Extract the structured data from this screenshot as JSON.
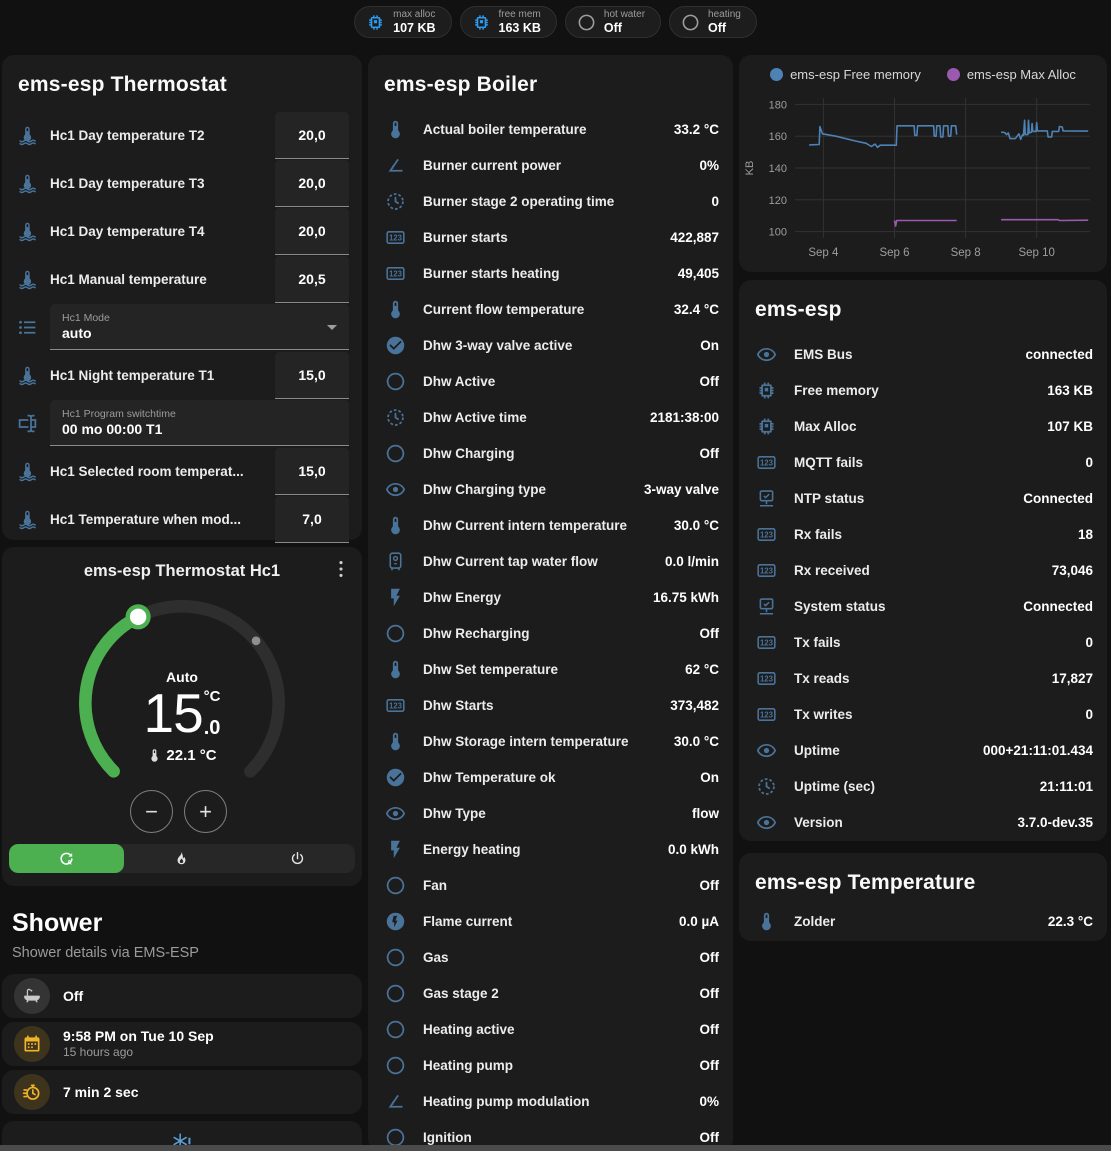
{
  "badges": [
    {
      "name": "max-alloc",
      "label": "max alloc",
      "value": "107 KB",
      "icon": "chip",
      "icon_color": "#2b9af0"
    },
    {
      "name": "free-mem",
      "label": "free mem",
      "value": "163 KB",
      "icon": "chip",
      "icon_color": "#2b9af0"
    },
    {
      "name": "hot-water",
      "label": "hot water",
      "value": "Off",
      "icon": "circle-outline",
      "icon_color": "#9e9e9e"
    },
    {
      "name": "heating",
      "label": "heating",
      "value": "Off",
      "icon": "circle-outline",
      "icon_color": "#9e9e9e"
    }
  ],
  "thermostat_card": {
    "title": "ems-esp Thermostat",
    "rows": [
      {
        "icon": "thermometer-water",
        "label": "Hc1 Day temperature T2",
        "control": "number",
        "value": "20,0"
      },
      {
        "icon": "thermometer-water",
        "label": "Hc1 Day temperature T3",
        "control": "number",
        "value": "20,0"
      },
      {
        "icon": "thermometer-water",
        "label": "Hc1 Day temperature T4",
        "control": "number",
        "value": "20,0"
      },
      {
        "icon": "thermometer-water",
        "label": "Hc1 Manual temperature",
        "control": "number",
        "value": "20,5"
      },
      {
        "icon": "format-list",
        "label": "Hc1 Mode",
        "control": "select",
        "value": "auto"
      },
      {
        "icon": "thermometer-water",
        "label": "Hc1 Night temperature T1",
        "control": "number",
        "value": "15,0"
      },
      {
        "icon": "form-textbox",
        "label": "Hc1 Program switchtime",
        "control": "text",
        "value": "00 mo 00:00 T1"
      },
      {
        "icon": "thermometer-water",
        "label": "Hc1 Selected room temperat...",
        "control": "number",
        "value": "15,0"
      },
      {
        "icon": "thermometer-water",
        "label": "Hc1 Temperature when mod...",
        "control": "number",
        "value": "7,0"
      }
    ]
  },
  "dial_card": {
    "title": "ems-esp Thermostat Hc1",
    "mode_label": "Auto",
    "target_int": "15",
    "target_dec": ".0",
    "unit": "°C",
    "current": "22.1 °C",
    "minus": "−",
    "plus": "+",
    "accent": "#4caf50"
  },
  "shower": {
    "title": "Shower",
    "subtitle": "Shower details via EMS-ESP",
    "items": [
      {
        "icon": "bathtub",
        "style": "gray",
        "primary": "Off",
        "secondary": ""
      },
      {
        "icon": "calendar",
        "style": "amber",
        "primary": "9:58 PM on Tue 10 Sep",
        "secondary": "15 hours ago"
      },
      {
        "icon": "timer",
        "style": "amber",
        "primary": "7 min 2 sec",
        "secondary": ""
      },
      {
        "icon": "snowflake-alert",
        "style": "plain-blue",
        "primary": "",
        "secondary": "",
        "centered": true
      }
    ]
  },
  "boiler_card": {
    "title": "ems-esp Boiler",
    "rows": [
      {
        "icon": "thermometer",
        "label": "Actual boiler temperature",
        "value": "33.2 °C"
      },
      {
        "icon": "angle-acute",
        "label": "Burner current power",
        "value": "0%"
      },
      {
        "icon": "progress-clock",
        "label": "Burner stage 2 operating time",
        "value": "0"
      },
      {
        "icon": "counter",
        "label": "Burner starts",
        "value": "422,887"
      },
      {
        "icon": "counter",
        "label": "Burner starts heating",
        "value": "49,405"
      },
      {
        "icon": "thermometer",
        "label": "Current flow temperature",
        "value": "32.4 °C"
      },
      {
        "icon": "check-circle",
        "label": "Dhw 3-way valve active",
        "value": "On"
      },
      {
        "icon": "circle-outline",
        "label": "Dhw Active",
        "value": "Off"
      },
      {
        "icon": "progress-clock",
        "label": "Dhw Active time",
        "value": "2181:38:00"
      },
      {
        "icon": "circle-outline",
        "label": "Dhw Charging",
        "value": "Off"
      },
      {
        "icon": "eye",
        "label": "Dhw Charging type",
        "value": "3-way valve"
      },
      {
        "icon": "thermometer",
        "label": "Dhw Current intern temperature",
        "value": "30.0 °C"
      },
      {
        "icon": "water-boiler",
        "label": "Dhw Current tap water flow",
        "value": "0.0 l/min"
      },
      {
        "icon": "flash",
        "label": "Dhw Energy",
        "value": "16.75 kWh"
      },
      {
        "icon": "circle-outline",
        "label": "Dhw Recharging",
        "value": "Off"
      },
      {
        "icon": "thermometer",
        "label": "Dhw Set temperature",
        "value": "62 °C"
      },
      {
        "icon": "counter",
        "label": "Dhw Starts",
        "value": "373,482"
      },
      {
        "icon": "thermometer",
        "label": "Dhw Storage intern temperature",
        "value": "30.0 °C"
      },
      {
        "icon": "check-circle",
        "label": "Dhw Temperature ok",
        "value": "On"
      },
      {
        "icon": "eye",
        "label": "Dhw Type",
        "value": "flow"
      },
      {
        "icon": "flash",
        "label": "Energy heating",
        "value": "0.0 kWh"
      },
      {
        "icon": "circle-outline",
        "label": "Fan",
        "value": "Off"
      },
      {
        "icon": "flash-circle",
        "label": "Flame current",
        "value": "0.0 µA"
      },
      {
        "icon": "circle-outline",
        "label": "Gas",
        "value": "Off"
      },
      {
        "icon": "circle-outline",
        "label": "Gas stage 2",
        "value": "Off"
      },
      {
        "icon": "circle-outline",
        "label": "Heating active",
        "value": "Off"
      },
      {
        "icon": "circle-outline",
        "label": "Heating pump",
        "value": "Off"
      },
      {
        "icon": "angle-acute",
        "label": "Heating pump modulation",
        "value": "0%"
      },
      {
        "icon": "circle-outline",
        "label": "Ignition",
        "value": "Off"
      }
    ]
  },
  "system_card": {
    "title": "ems-esp",
    "rows": [
      {
        "icon": "eye",
        "label": "EMS Bus",
        "value": "connected"
      },
      {
        "icon": "chip",
        "label": "Free memory",
        "value": "163 KB"
      },
      {
        "icon": "chip",
        "label": "Max Alloc",
        "value": "107 KB"
      },
      {
        "icon": "counter",
        "label": "MQTT fails",
        "value": "0"
      },
      {
        "icon": "monitor-check",
        "label": "NTP status",
        "value": "Connected"
      },
      {
        "icon": "counter",
        "label": "Rx fails",
        "value": "18"
      },
      {
        "icon": "counter",
        "label": "Rx received",
        "value": "73,046"
      },
      {
        "icon": "monitor-check",
        "label": "System status",
        "value": "Connected"
      },
      {
        "icon": "counter",
        "label": "Tx fails",
        "value": "0"
      },
      {
        "icon": "counter",
        "label": "Tx reads",
        "value": "17,827"
      },
      {
        "icon": "counter",
        "label": "Tx writes",
        "value": "0"
      },
      {
        "icon": "eye",
        "label": "Uptime",
        "value": "000+21:11:01.434"
      },
      {
        "icon": "progress-clock",
        "label": "Uptime (sec)",
        "value": "21:11:01"
      },
      {
        "icon": "eye",
        "label": "Version",
        "value": "3.7.0-dev.35"
      }
    ]
  },
  "temperature_card": {
    "title": "ems-esp Temperature",
    "rows": [
      {
        "icon": "thermometer",
        "label": "Zolder",
        "value": "22.3 °C"
      }
    ]
  },
  "chart_data": {
    "type": "line",
    "title": "",
    "xlabel": "",
    "ylabel": "KB",
    "yticks": [
      100,
      120,
      140,
      160,
      180
    ],
    "ylim": [
      96,
      184
    ],
    "xticks": [
      {
        "label": "Sep 4",
        "x": 4
      },
      {
        "label": "Sep 6",
        "x": 6
      },
      {
        "label": "Sep 8",
        "x": 8
      },
      {
        "label": "Sep 10",
        "x": 10
      }
    ],
    "xlim": [
      3.2,
      11.5
    ],
    "grid": true,
    "legend_position": "top",
    "legend": [
      {
        "name": "ems-esp Free memory",
        "color": "#4e82b5"
      },
      {
        "name": "ems-esp Max Alloc",
        "color": "#9b59b0"
      }
    ],
    "series": [
      {
        "name": "ems-esp Free memory",
        "color": "#4e82b5",
        "segments": [
          [
            [
              3.6,
              154.5
            ],
            [
              3.88,
              154.8
            ],
            [
              3.9,
              166
            ],
            [
              3.97,
              161.5
            ],
            [
              4.35,
              160
            ],
            [
              4.9,
              157
            ],
            [
              5.2,
              155.5
            ],
            [
              5.35,
              153.5
            ],
            [
              5.45,
              155
            ],
            [
              5.52,
              153
            ],
            [
              5.6,
              154.3
            ],
            [
              6.05,
              154.3
            ],
            [
              6.07,
              166.5
            ],
            [
              6.55,
              166.5
            ],
            [
              6.57,
              160.5
            ],
            [
              6.63,
              160.5
            ],
            [
              6.65,
              166.5
            ],
            [
              7.1,
              166.5
            ],
            [
              7.12,
              160
            ],
            [
              7.17,
              160
            ],
            [
              7.19,
              166.5
            ],
            [
              7.28,
              166.5
            ],
            [
              7.3,
              159.5
            ],
            [
              7.36,
              159.5
            ],
            [
              7.38,
              166.5
            ],
            [
              7.5,
              166.5
            ],
            [
              7.52,
              160
            ],
            [
              7.58,
              160
            ],
            [
              7.6,
              166.5
            ],
            [
              7.72,
              166.5
            ],
            [
              7.75,
              161
            ]
          ],
          [
            [
              9.0,
              162.5
            ],
            [
              9.1,
              162.3
            ],
            [
              9.15,
              161
            ],
            [
              9.2,
              162
            ],
            [
              9.25,
              158.5
            ],
            [
              9.4,
              158.5
            ],
            [
              9.45,
              160
            ],
            [
              9.5,
              161.5
            ],
            [
              9.55,
              158
            ],
            [
              9.6,
              161
            ],
            [
              9.63,
              160.5
            ],
            [
              9.66,
              170
            ],
            [
              9.68,
              161
            ],
            [
              9.75,
              161
            ],
            [
              9.77,
              170
            ],
            [
              9.79,
              162
            ],
            [
              9.85,
              162.5
            ],
            [
              9.87,
              168
            ],
            [
              9.89,
              163
            ],
            [
              9.98,
              163
            ],
            [
              10.0,
              168.5
            ],
            [
              10.02,
              163.3
            ],
            [
              10.3,
              163.3
            ],
            [
              10.32,
              159.5
            ],
            [
              10.42,
              159.5
            ],
            [
              10.44,
              163
            ],
            [
              10.62,
              163
            ],
            [
              10.64,
              166
            ],
            [
              10.72,
              165.8
            ],
            [
              10.74,
              163.3
            ],
            [
              11.45,
              163.2
            ]
          ]
        ]
      },
      {
        "name": "ems-esp Max Alloc",
        "color": "#9b59b0",
        "segments": [
          [
            [
              6.0,
              107
            ],
            [
              6.03,
              103.5
            ],
            [
              6.06,
              107
            ],
            [
              7.75,
              107
            ]
          ],
          [
            [
              9.0,
              107.5
            ],
            [
              10.6,
              107.5
            ],
            [
              10.65,
              107
            ],
            [
              11.45,
              107.2
            ]
          ]
        ]
      }
    ]
  }
}
